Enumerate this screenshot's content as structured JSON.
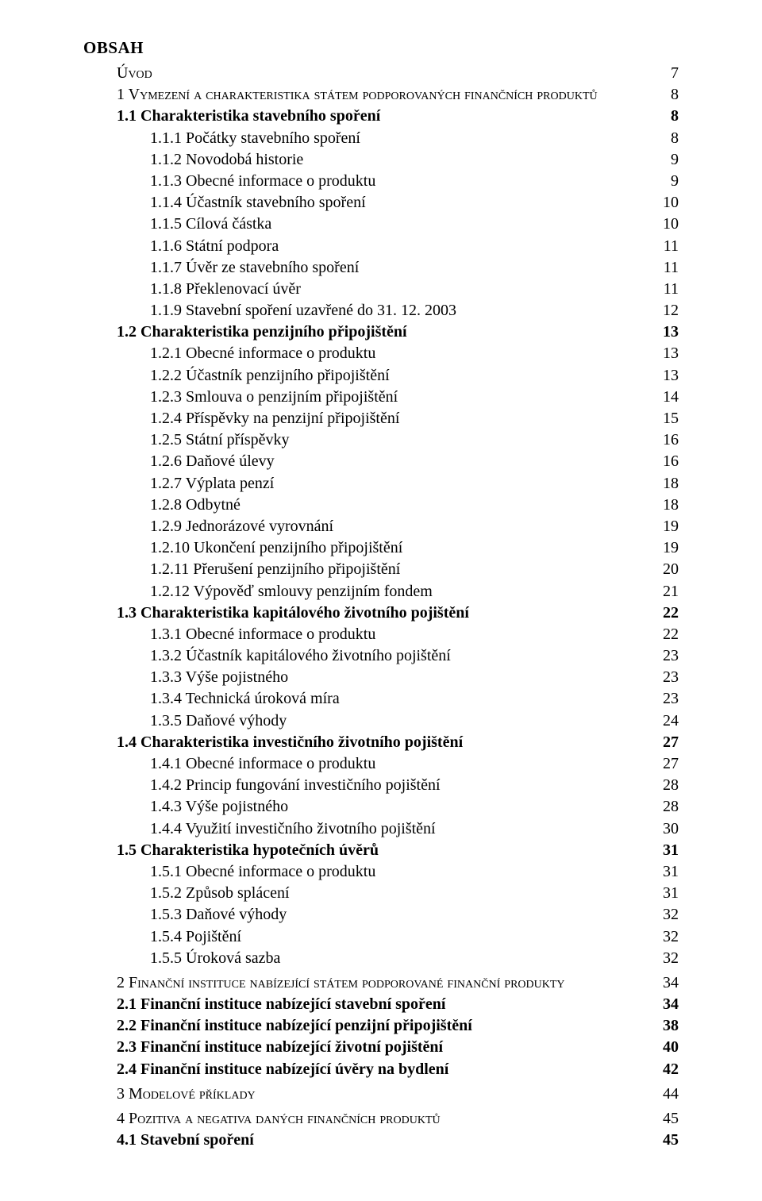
{
  "title": "OBSAH",
  "toc": [
    {
      "level": 1,
      "smallcaps": true,
      "bold": false,
      "label": "Úvod",
      "page": "7"
    },
    {
      "level": 1,
      "smallcaps": true,
      "bold": false,
      "label": "1 Vymezení a charakteristika státem podporovaných finančních produktů",
      "page": "8"
    },
    {
      "level": 2,
      "smallcaps": false,
      "bold": true,
      "label": "1.1 Charakteristika stavebního spoření",
      "page": "8"
    },
    {
      "level": 3,
      "smallcaps": false,
      "bold": false,
      "label": "1.1.1 Počátky stavebního spoření",
      "page": "8"
    },
    {
      "level": 3,
      "smallcaps": false,
      "bold": false,
      "label": "1.1.2 Novodobá historie",
      "page": "9"
    },
    {
      "level": 3,
      "smallcaps": false,
      "bold": false,
      "label": "1.1.3 Obecné informace o produktu",
      "page": "9"
    },
    {
      "level": 3,
      "smallcaps": false,
      "bold": false,
      "label": "1.1.4 Účastník stavebního spoření",
      "page": "10"
    },
    {
      "level": 3,
      "smallcaps": false,
      "bold": false,
      "label": "1.1.5 Cílová částka",
      "page": "10"
    },
    {
      "level": 3,
      "smallcaps": false,
      "bold": false,
      "label": "1.1.6 Státní podpora",
      "page": "11"
    },
    {
      "level": 3,
      "smallcaps": false,
      "bold": false,
      "label": "1.1.7 Úvěr ze stavebního spoření",
      "page": "11"
    },
    {
      "level": 3,
      "smallcaps": false,
      "bold": false,
      "label": "1.1.8 Překlenovací úvěr",
      "page": "11"
    },
    {
      "level": 3,
      "smallcaps": false,
      "bold": false,
      "label": "1.1.9 Stavební spoření uzavřené do 31. 12. 2003",
      "page": "12"
    },
    {
      "level": 2,
      "smallcaps": false,
      "bold": true,
      "label": "1.2 Charakteristika penzijního připojištění",
      "page": "13"
    },
    {
      "level": 3,
      "smallcaps": false,
      "bold": false,
      "label": "1.2.1 Obecné informace o produktu",
      "page": "13"
    },
    {
      "level": 3,
      "smallcaps": false,
      "bold": false,
      "label": "1.2.2 Účastník penzijního připojištění",
      "page": "13"
    },
    {
      "level": 3,
      "smallcaps": false,
      "bold": false,
      "label": "1.2.3 Smlouva o penzijním připojištění",
      "page": "14"
    },
    {
      "level": 3,
      "smallcaps": false,
      "bold": false,
      "label": "1.2.4 Příspěvky na penzijní připojištění",
      "page": "15"
    },
    {
      "level": 3,
      "smallcaps": false,
      "bold": false,
      "label": "1.2.5 Státní příspěvky",
      "page": "16"
    },
    {
      "level": 3,
      "smallcaps": false,
      "bold": false,
      "label": "1.2.6 Daňové úlevy",
      "page": "16"
    },
    {
      "level": 3,
      "smallcaps": false,
      "bold": false,
      "label": "1.2.7 Výplata penzí",
      "page": "18"
    },
    {
      "level": 3,
      "smallcaps": false,
      "bold": false,
      "label": "1.2.8 Odbytné",
      "page": "18"
    },
    {
      "level": 3,
      "smallcaps": false,
      "bold": false,
      "label": "1.2.9 Jednorázové vyrovnání",
      "page": "19"
    },
    {
      "level": 3,
      "smallcaps": false,
      "bold": false,
      "label": "1.2.10 Ukončení penzijního připojištění",
      "page": "19"
    },
    {
      "level": 3,
      "smallcaps": false,
      "bold": false,
      "label": "1.2.11 Přerušení penzijního připojištění",
      "page": "20"
    },
    {
      "level": 3,
      "smallcaps": false,
      "bold": false,
      "label": "1.2.12 Výpověď smlouvy penzijním fondem",
      "page": "21"
    },
    {
      "level": 2,
      "smallcaps": false,
      "bold": true,
      "label": "1.3 Charakteristika kapitálového životního pojištění",
      "page": "22"
    },
    {
      "level": 3,
      "smallcaps": false,
      "bold": false,
      "label": "1.3.1 Obecné informace o produktu",
      "page": "22"
    },
    {
      "level": 3,
      "smallcaps": false,
      "bold": false,
      "label": "1.3.2 Účastník kapitálového životního pojištění",
      "page": "23"
    },
    {
      "level": 3,
      "smallcaps": false,
      "bold": false,
      "label": "1.3.3 Výše pojistného",
      "page": "23"
    },
    {
      "level": 3,
      "smallcaps": false,
      "bold": false,
      "label": "1.3.4 Technická úroková míra",
      "page": "23"
    },
    {
      "level": 3,
      "smallcaps": false,
      "bold": false,
      "label": "1.3.5 Daňové výhody",
      "page": "24"
    },
    {
      "level": 2,
      "smallcaps": false,
      "bold": true,
      "label": "1.4 Charakteristika investičního životního pojištění",
      "page": "27"
    },
    {
      "level": 3,
      "smallcaps": false,
      "bold": false,
      "label": "1.4.1 Obecné informace o produktu",
      "page": "27"
    },
    {
      "level": 3,
      "smallcaps": false,
      "bold": false,
      "label": "1.4.2 Princip fungování investičního pojištění",
      "page": "28"
    },
    {
      "level": 3,
      "smallcaps": false,
      "bold": false,
      "label": "1.4.3 Výše pojistného",
      "page": "28"
    },
    {
      "level": 3,
      "smallcaps": false,
      "bold": false,
      "label": "1.4.4 Využití investičního životního pojištění",
      "page": "30"
    },
    {
      "level": 2,
      "smallcaps": false,
      "bold": true,
      "label": "1.5 Charakteristika hypotečních úvěrů",
      "page": "31"
    },
    {
      "level": 3,
      "smallcaps": false,
      "bold": false,
      "label": "1.5.1 Obecné informace o produktu",
      "page": "31"
    },
    {
      "level": 3,
      "smallcaps": false,
      "bold": false,
      "label": "1.5.2 Způsob splácení",
      "page": "31"
    },
    {
      "level": 3,
      "smallcaps": false,
      "bold": false,
      "label": "1.5.3 Daňové výhody",
      "page": "32"
    },
    {
      "level": 3,
      "smallcaps": false,
      "bold": false,
      "label": "1.5.4 Pojištění",
      "page": "32"
    },
    {
      "level": 3,
      "smallcaps": false,
      "bold": false,
      "label": "1.5.5 Úroková sazba",
      "page": "32"
    },
    {
      "level": 1,
      "smallcaps": true,
      "bold": false,
      "gap": true,
      "label": "2 Finanční instituce nabízející státem podporované finanční produkty",
      "page": "34"
    },
    {
      "level": 2,
      "smallcaps": false,
      "bold": true,
      "label": "2.1 Finanční instituce nabízející stavební spoření",
      "page": "34"
    },
    {
      "level": 2,
      "smallcaps": false,
      "bold": true,
      "label": "2.2 Finanční instituce nabízející penzijní připojištění",
      "page": "38"
    },
    {
      "level": 2,
      "smallcaps": false,
      "bold": true,
      "label": "2.3 Finanční instituce nabízející životní pojištění",
      "page": "40"
    },
    {
      "level": 2,
      "smallcaps": false,
      "bold": true,
      "label": "2.4 Finanční instituce nabízející úvěry na bydlení",
      "page": "42"
    },
    {
      "level": 1,
      "smallcaps": true,
      "bold": false,
      "gap": true,
      "label": "3 Modelové příklady",
      "page": "44"
    },
    {
      "level": 1,
      "smallcaps": true,
      "bold": false,
      "gap": true,
      "label": "4 Pozitiva a negativa daných finančních produktů",
      "page": "45"
    },
    {
      "level": 2,
      "smallcaps": false,
      "bold": true,
      "label": "4.1 Stavební spoření",
      "page": "45"
    }
  ]
}
